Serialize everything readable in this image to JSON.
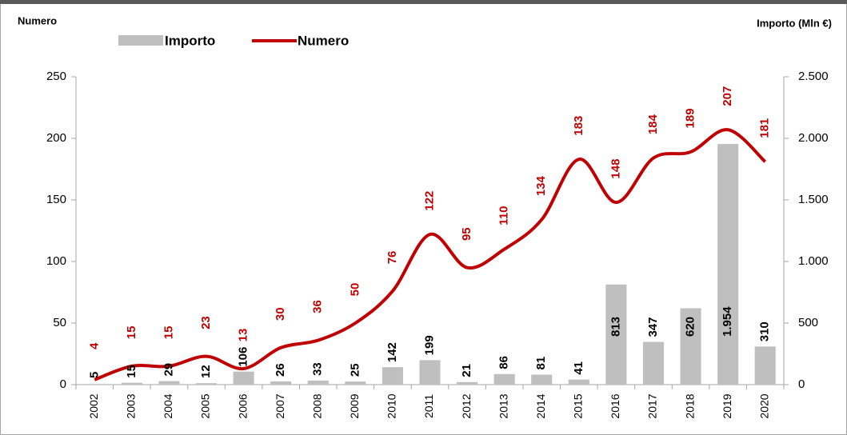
{
  "chart_data": {
    "type": "bar-line",
    "y_label": "Numero",
    "y2_label": "Importo (Mln €)",
    "categories": [
      "2002",
      "2003",
      "2004",
      "2005",
      "2006",
      "2007",
      "2008",
      "2009",
      "2010",
      "2011",
      "2012",
      "2013",
      "2014",
      "2015",
      "2016",
      "2017",
      "2018",
      "2019",
      "2020"
    ],
    "series": [
      {
        "name": "Importo",
        "type": "bar",
        "axis": "y2",
        "color": "#bfbfbf",
        "label_color": "#000000",
        "values": [
          5,
          15,
          29,
          12,
          106,
          26,
          33,
          25,
          142,
          199,
          21,
          86,
          81,
          41,
          813,
          347,
          620,
          1954,
          310
        ],
        "value_labels": [
          "5",
          "15",
          "29",
          "12",
          "106",
          "26",
          "33",
          "25",
          "142",
          "199",
          "21",
          "86",
          "81",
          "41",
          "813",
          "347",
          "620",
          "1.954",
          "310"
        ]
      },
      {
        "name": "Numero",
        "type": "line",
        "axis": "y",
        "color": "#c00000",
        "label_color": "#c00000",
        "values": [
          4,
          15,
          15,
          23,
          13,
          30,
          36,
          50,
          76,
          122,
          95,
          110,
          134,
          183,
          148,
          184,
          189,
          207,
          181
        ]
      }
    ],
    "ylim": [
      0,
      250
    ],
    "yticks": [
      0,
      50,
      100,
      150,
      200,
      250
    ],
    "y2lim": [
      0,
      2500
    ],
    "y2ticks": [
      0,
      500,
      {
        "value": 1000,
        "label": "1.000"
      },
      {
        "value": 1500,
        "label": "1.500"
      },
      {
        "value": 2000,
        "label": "2.000"
      },
      {
        "value": 2500,
        "label": "2.500"
      }
    ],
    "grid": false,
    "legend": "top"
  }
}
